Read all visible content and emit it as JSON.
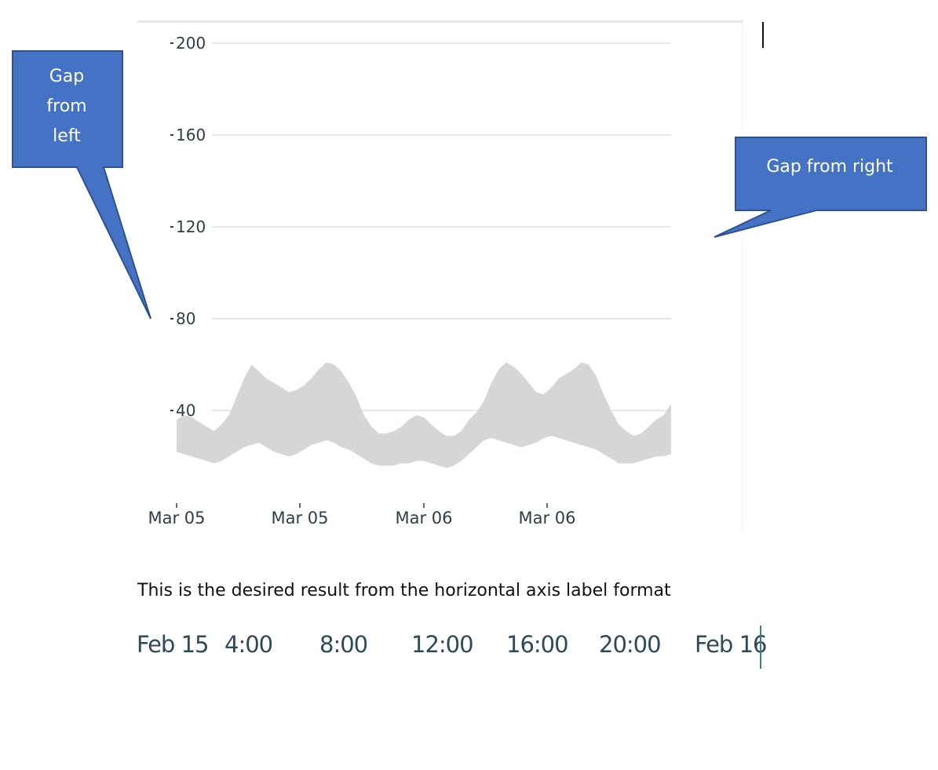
{
  "chart_data": {
    "type": "area",
    "y_ticks": [
      "200",
      "160",
      "120",
      "80",
      "40"
    ],
    "y_tick_values": [
      200,
      160,
      120,
      80,
      40
    ],
    "ylim": [
      0,
      200
    ],
    "x_tick_labels": [
      "Mar 05",
      "Mar 05",
      "Mar 06",
      "Mar 06"
    ],
    "grid": true,
    "band_color": "#d5d6d5",
    "band": {
      "upper": [
        36,
        38,
        37,
        35,
        33,
        31,
        34,
        38,
        46,
        54,
        60,
        57,
        54,
        52,
        50,
        48,
        49,
        51,
        54,
        58,
        61,
        60,
        57,
        52,
        46,
        38,
        33,
        30,
        30,
        31,
        33,
        36,
        38,
        37,
        34,
        31,
        29,
        29,
        31,
        36,
        39,
        44,
        52,
        58,
        61,
        59,
        56,
        52,
        48,
        47,
        50,
        54,
        56,
        58,
        61,
        60,
        55,
        47,
        40,
        34,
        31,
        29,
        30,
        33,
        36,
        38,
        43
      ],
      "lower": [
        22,
        21,
        20,
        19,
        18,
        17,
        18,
        20,
        22,
        24,
        25,
        26,
        24,
        22,
        21,
        20,
        21,
        23,
        25,
        26,
        27,
        26,
        24,
        23,
        21,
        19,
        17,
        16,
        16,
        16,
        17,
        17,
        18,
        18,
        17,
        16,
        15,
        16,
        18,
        21,
        24,
        27,
        28,
        27,
        26,
        25,
        24,
        25,
        26,
        28,
        29,
        28,
        27,
        26,
        25,
        24,
        23,
        21,
        19,
        17,
        17,
        17,
        18,
        19,
        20,
        20,
        21
      ]
    }
  },
  "callouts": {
    "left_label": [
      "Gap",
      "from",
      "left"
    ],
    "right_label": "Gap from right",
    "fill": "#4472c4",
    "stroke": "#2f528f"
  },
  "caption": "This is the desired result from the horizontal axis label format",
  "desired_axis_labels": [
    "Feb 15",
    "4:00",
    "8:00",
    "12:00",
    "16:00",
    "20:00",
    "Feb 16"
  ]
}
